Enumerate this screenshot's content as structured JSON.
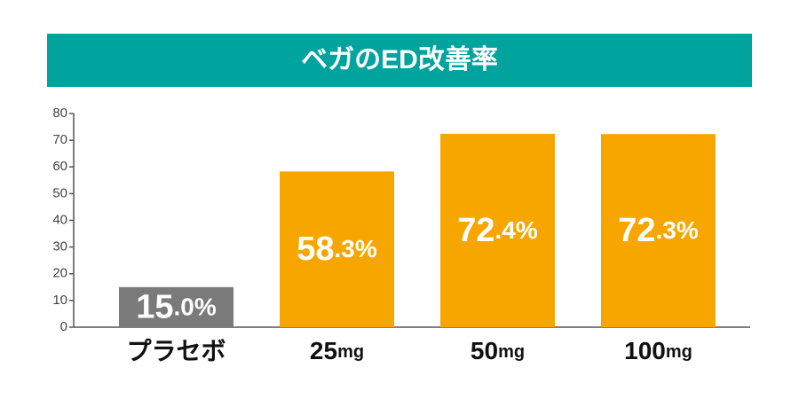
{
  "chart_data": {
    "type": "bar",
    "title": "ベガのED改善率",
    "categories": [
      "プラセボ",
      "25mg",
      "50mg",
      "100mg"
    ],
    "values": [
      15.0,
      58.3,
      72.4,
      72.3
    ],
    "value_labels": [
      "15.0%",
      "58.3%",
      "72.4%",
      "72.3%"
    ],
    "colors": [
      "#7a7a7a",
      "#f7a600",
      "#f7a600",
      "#f7a600"
    ],
    "title_color": "#00a39d",
    "ylim": [
      0,
      80
    ],
    "yticks": [
      0,
      10,
      20,
      30,
      40,
      50,
      60,
      70,
      80
    ],
    "grid": false
  }
}
